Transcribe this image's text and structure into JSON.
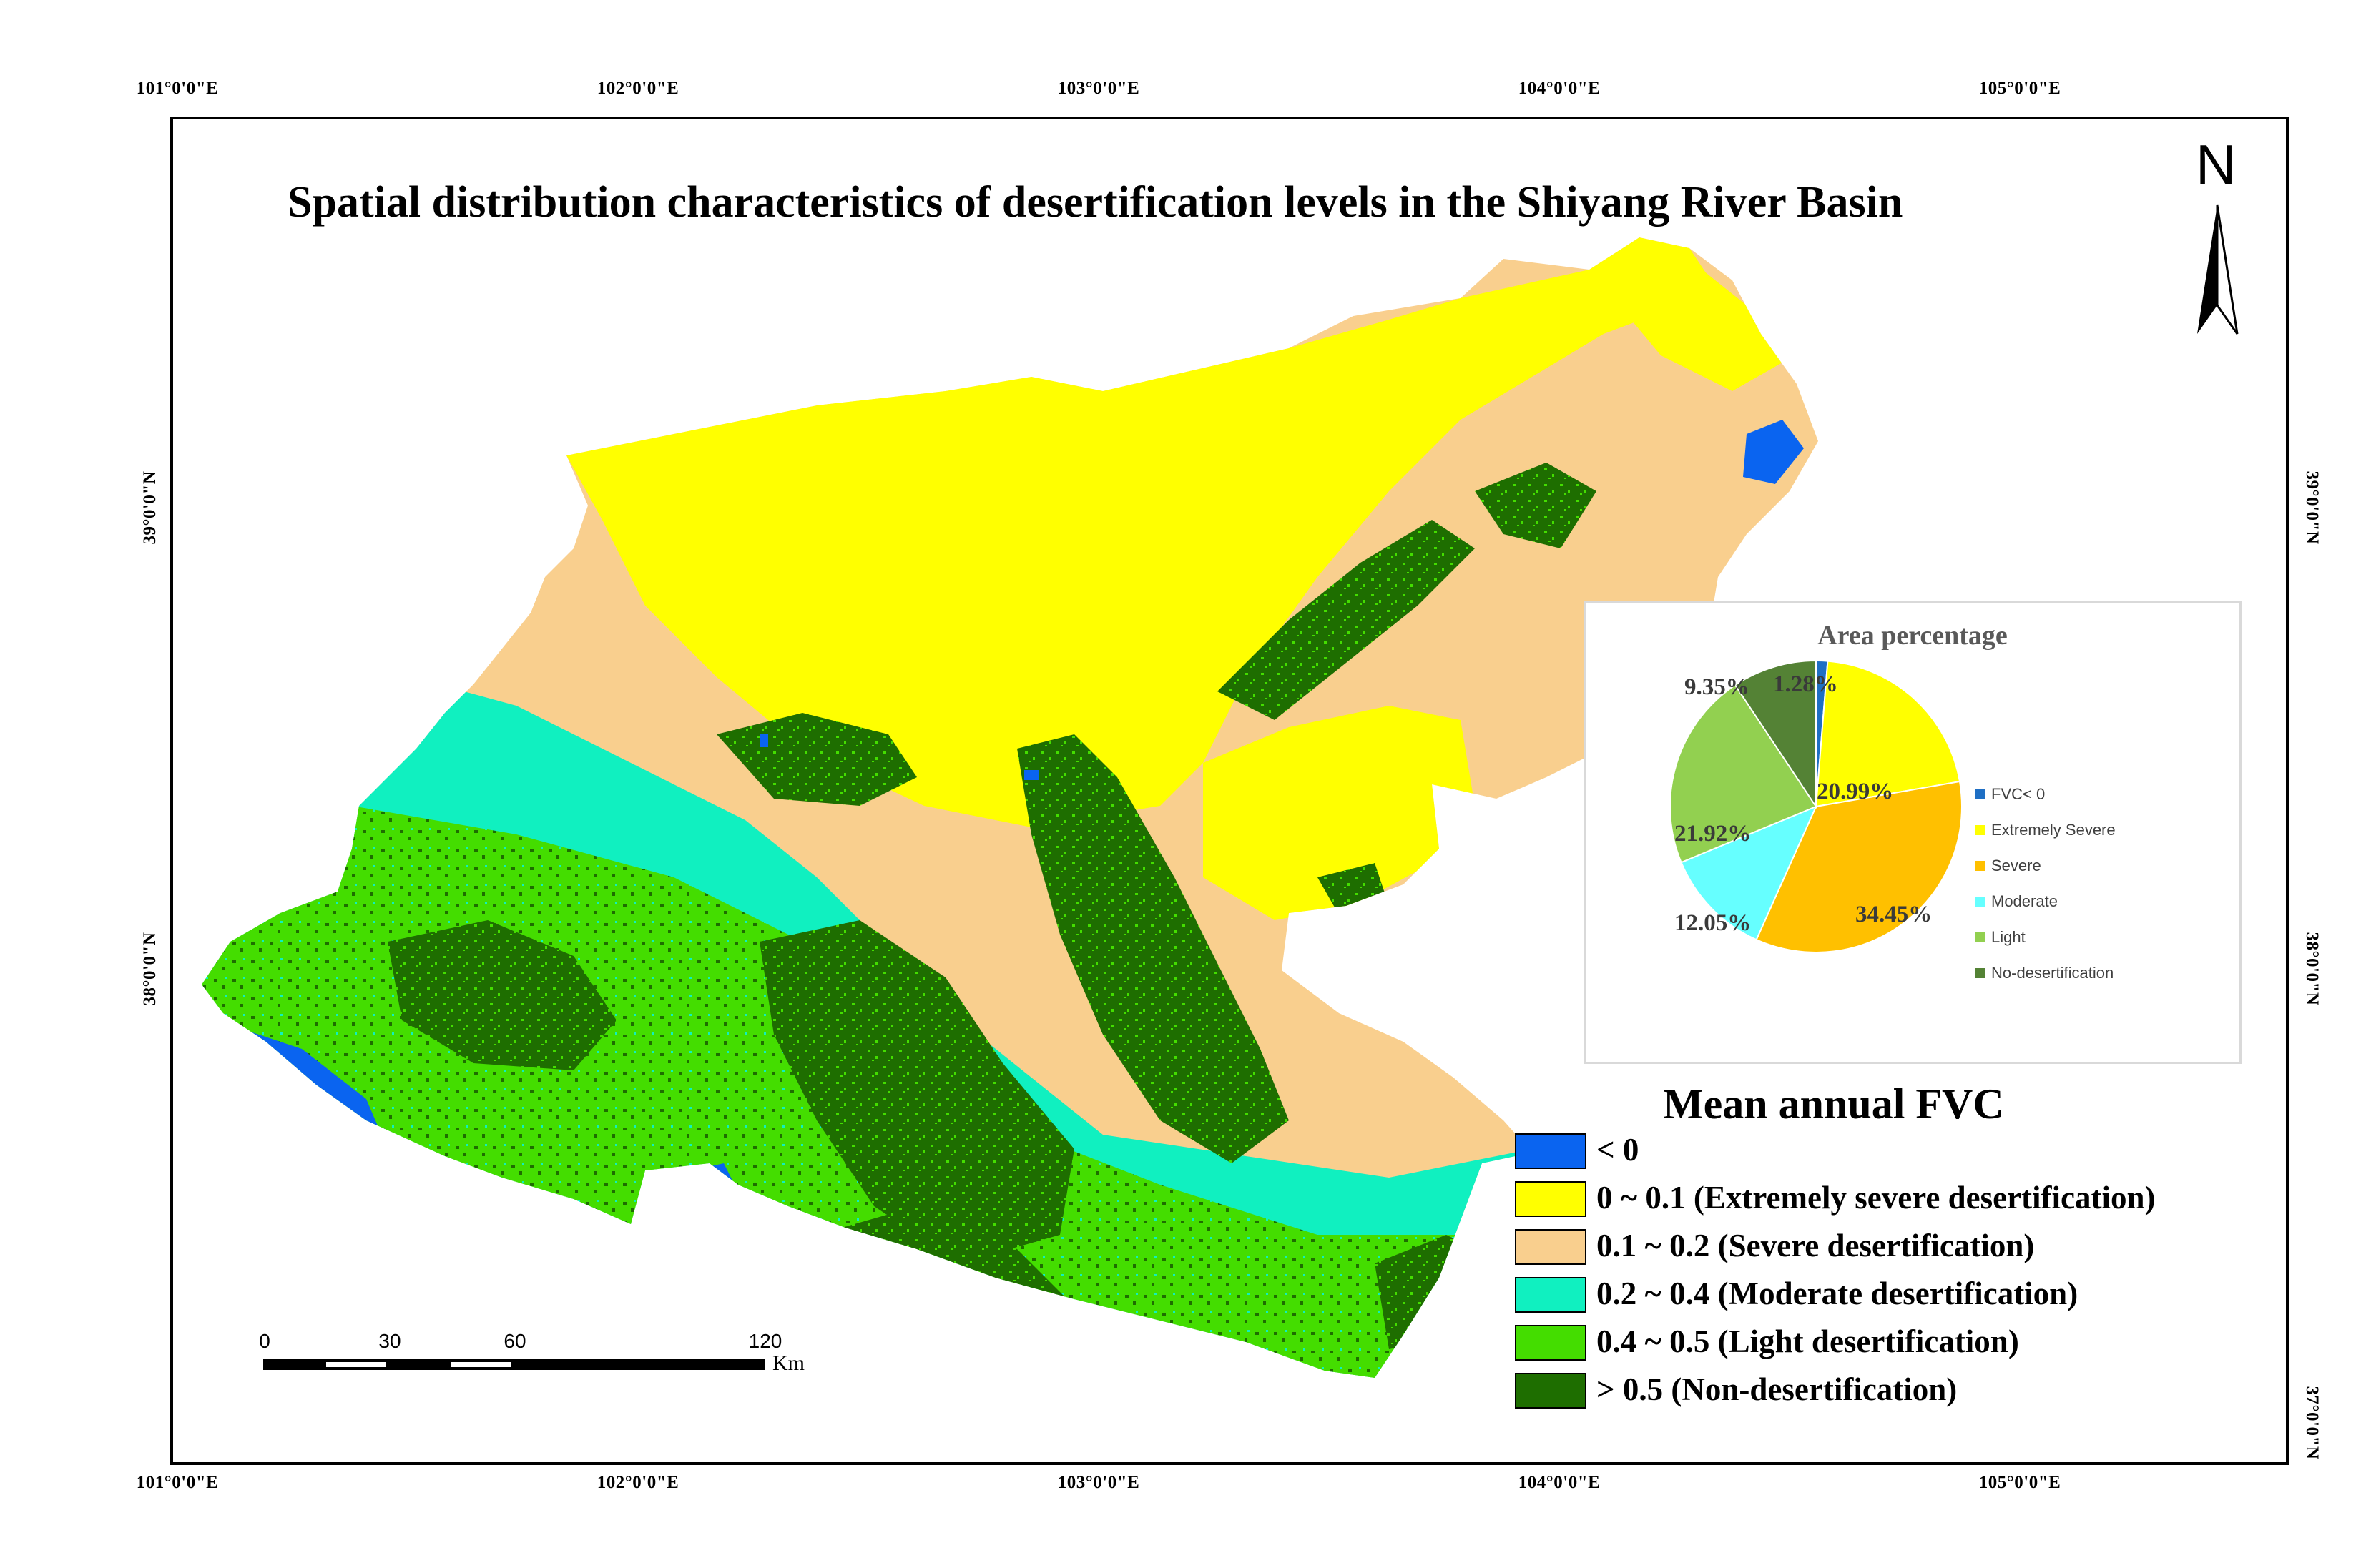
{
  "map": {
    "title": "Spatial distribution characteristics of desertification levels in the Shiyang River Basin",
    "north_label": "N",
    "lon_labels": [
      "101°0'0\"E",
      "102°0'0\"E",
      "103°0'0\"E",
      "104°0'0\"E",
      "105°0'0\"E"
    ],
    "lat_labels": [
      "39°0'0\"N",
      "38°0'0\"N",
      "37°0'0\"N"
    ],
    "colors": {
      "water": "#0a64f0",
      "extremely_severe": "#ffff00",
      "severe": "#f9cf8e",
      "moderate": "#10f0c0",
      "light": "#44dd00",
      "non_desertification": "#1e6e00"
    }
  },
  "legend": {
    "title": "Mean annual FVC",
    "items": [
      {
        "label": "< 0",
        "color": "#0a64f0"
      },
      {
        "label": "0 ~ 0.1 (Extremely severe desertification)",
        "color": "#ffff00"
      },
      {
        "label": "0.1 ~ 0.2 (Severe desertification)",
        "color": "#f9cf8e"
      },
      {
        "label": "0.2 ~ 0.4 (Moderate desertification)",
        "color": "#10f0c0"
      },
      {
        "label": "0.4 ~ 0.5 (Light desertification)",
        "color": "#44dd00"
      },
      {
        "label": "> 0.5 (Non-desertification)",
        "color": "#1e6e00"
      }
    ]
  },
  "scale_bar": {
    "ticks": [
      "0",
      "30",
      "60",
      "120"
    ],
    "unit": "Km"
  },
  "chart_data": {
    "type": "pie",
    "title": "Area percentage",
    "legend_position": "right",
    "slices": [
      {
        "name": "FVC< 0",
        "value": 1.28,
        "label": "1.28%",
        "color": "#1f6fc4"
      },
      {
        "name": "Extremely Severe",
        "value": 20.99,
        "label": "20.99%",
        "color": "#ffff00"
      },
      {
        "name": "Severe",
        "value": 34.45,
        "label": "34.45%",
        "color": "#ffc000"
      },
      {
        "name": "Moderate",
        "value": 12.05,
        "label": "12.05%",
        "color": "#66ffff"
      },
      {
        "name": "Light",
        "value": 21.92,
        "label": "21.92%",
        "color": "#92d050"
      },
      {
        "name": "No-desertification",
        "value": 9.35,
        "label": "9.35%",
        "color": "#548235"
      }
    ]
  }
}
